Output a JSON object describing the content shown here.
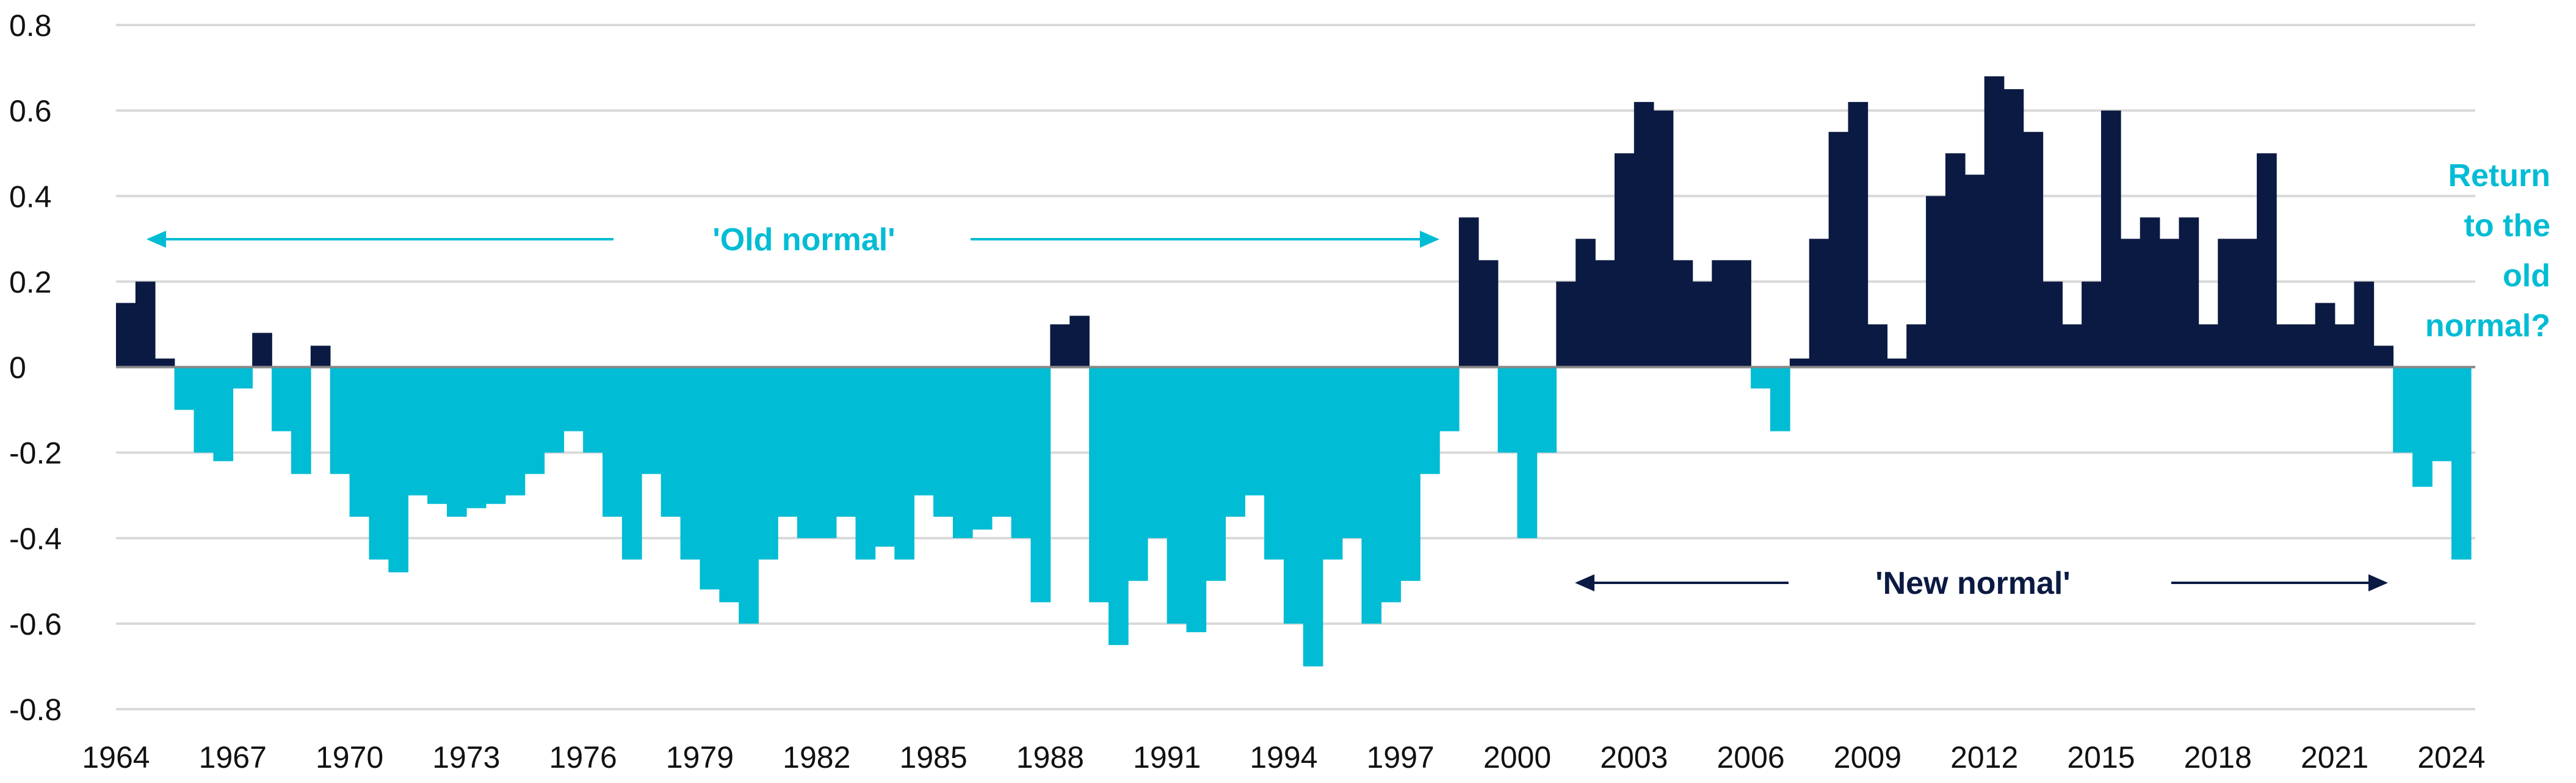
{
  "chart_data": {
    "type": "area",
    "title": "",
    "xlabel": "",
    "ylabel": "",
    "ylim": [
      -0.8,
      0.8
    ],
    "xlim": [
      1964,
      2024.5
    ],
    "grid": true,
    "y_ticks": [
      "0.8",
      "0.6",
      "0.4",
      "0.2",
      "0",
      "-0.2",
      "-0.4",
      "-0.6",
      "-0.8"
    ],
    "y_tick_values": [
      0.8,
      0.6,
      0.4,
      0.2,
      0,
      -0.2,
      -0.4,
      -0.6,
      -0.8
    ],
    "x_ticks": [
      "1964",
      "1967",
      "1970",
      "1973",
      "1976",
      "1979",
      "1982",
      "1985",
      "1988",
      "1991",
      "1994",
      "1997",
      "2000",
      "2003",
      "2006",
      "2009",
      "2012",
      "2015",
      "2018",
      "2021",
      "2024"
    ],
    "colors": {
      "positive": "#0b1a42",
      "negative": "#00bcd4",
      "grid": "#d9d9d9",
      "axis": "#888888"
    },
    "annotations": {
      "old_normal": "'Old normal'",
      "new_normal": "'New normal'",
      "return": [
        "Return",
        "to the",
        "old",
        "normal?"
      ]
    },
    "x": [
      1964.0,
      1964.5,
      1965.0,
      1965.5,
      1966.0,
      1966.5,
      1967.0,
      1967.5,
      1968.0,
      1968.5,
      1969.0,
      1969.5,
      1970.0,
      1970.5,
      1971.0,
      1971.5,
      1972.0,
      1972.5,
      1973.0,
      1973.5,
      1974.0,
      1974.5,
      1975.0,
      1975.5,
      1976.0,
      1976.5,
      1977.0,
      1977.5,
      1978.0,
      1978.5,
      1979.0,
      1979.5,
      1980.0,
      1980.5,
      1981.0,
      1981.5,
      1982.0,
      1982.5,
      1983.0,
      1983.5,
      1984.0,
      1984.5,
      1985.0,
      1985.5,
      1986.0,
      1986.5,
      1987.0,
      1987.5,
      1988.0,
      1988.5,
      1989.0,
      1989.5,
      1990.0,
      1990.5,
      1991.0,
      1991.5,
      1992.0,
      1992.5,
      1993.0,
      1993.5,
      1994.0,
      1994.5,
      1995.0,
      1995.5,
      1996.0,
      1996.5,
      1997.0,
      1997.5,
      1998.0,
      1998.5,
      1999.0,
      1999.5,
      2000.0,
      2000.5,
      2001.0,
      2001.5,
      2002.0,
      2002.5,
      2003.0,
      2003.5,
      2004.0,
      2004.5,
      2005.0,
      2005.5,
      2006.0,
      2006.5,
      2007.0,
      2007.5,
      2008.0,
      2008.5,
      2009.0,
      2009.5,
      2010.0,
      2010.5,
      2011.0,
      2011.5,
      2012.0,
      2012.5,
      2013.0,
      2013.5,
      2014.0,
      2014.5,
      2015.0,
      2015.5,
      2016.0,
      2016.5,
      2017.0,
      2017.5,
      2018.0,
      2018.5,
      2019.0,
      2019.5,
      2020.0,
      2020.5,
      2021.0,
      2021.5,
      2022.0,
      2022.5,
      2023.0,
      2023.5,
      2024.0
    ],
    "values": [
      0.15,
      0.2,
      0.02,
      -0.1,
      -0.2,
      -0.22,
      -0.05,
      0.08,
      -0.15,
      -0.25,
      0.05,
      -0.25,
      -0.35,
      -0.45,
      -0.48,
      -0.3,
      -0.32,
      -0.35,
      -0.33,
      -0.32,
      -0.3,
      -0.25,
      -0.2,
      -0.15,
      -0.2,
      -0.35,
      -0.45,
      -0.25,
      -0.35,
      -0.45,
      -0.52,
      -0.55,
      -0.6,
      -0.45,
      -0.35,
      -0.4,
      -0.4,
      -0.35,
      -0.45,
      -0.42,
      -0.45,
      -0.3,
      -0.35,
      -0.4,
      -0.38,
      -0.35,
      -0.4,
      -0.55,
      0.1,
      0.12,
      -0.55,
      -0.65,
      -0.5,
      -0.4,
      -0.6,
      -0.62,
      -0.5,
      -0.35,
      -0.3,
      -0.45,
      -0.6,
      -0.7,
      -0.45,
      -0.4,
      -0.6,
      -0.55,
      -0.5,
      -0.25,
      -0.15,
      0.35,
      0.25,
      -0.2,
      -0.4,
      -0.2,
      0.2,
      0.3,
      0.25,
      0.5,
      0.62,
      0.6,
      0.25,
      0.2,
      0.25,
      0.25,
      -0.05,
      -0.15,
      0.02,
      0.3,
      0.55,
      0.62,
      0.1,
      0.02,
      0.1,
      0.4,
      0.5,
      0.45,
      0.68,
      0.65,
      0.55,
      0.2,
      0.1,
      0.2,
      0.6,
      0.3,
      0.35,
      0.3,
      0.35,
      0.1,
      0.3,
      0.3,
      0.5,
      0.1,
      0.1,
      0.15,
      0.1,
      0.2,
      0.05,
      -0.2,
      -0.28,
      -0.22,
      -0.45
    ]
  }
}
